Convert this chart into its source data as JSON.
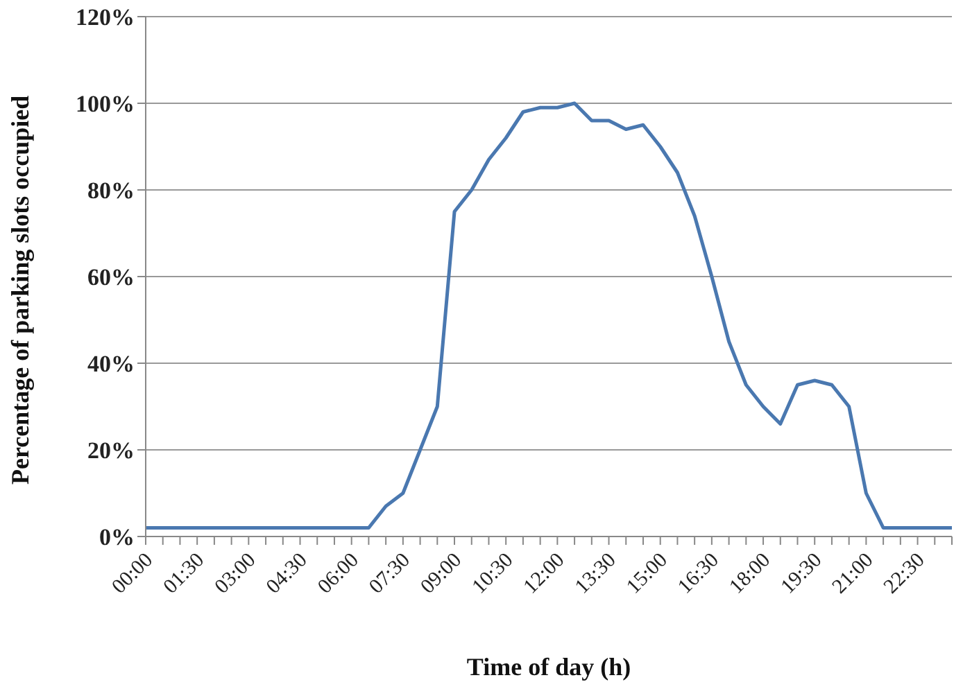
{
  "chart_data": {
    "type": "line",
    "xlabel": "Time of day (h)",
    "ylabel": "Percentage of parking slots occupied",
    "categories": [
      "00:00",
      null,
      null,
      "01:30",
      null,
      null,
      "03:00",
      null,
      null,
      "04:30",
      null,
      null,
      "06:00",
      null,
      null,
      "07:30",
      null,
      null,
      "09:00",
      null,
      null,
      "10:30",
      null,
      null,
      "12:00",
      null,
      null,
      "13:30",
      null,
      null,
      "15:00",
      null,
      null,
      "16:30",
      null,
      null,
      "18:00",
      null,
      null,
      "19:30",
      null,
      null,
      "21:00",
      null,
      null,
      "22:30",
      null,
      null
    ],
    "series": [
      {
        "color": "#4a78b0",
        "values": [
          2,
          2,
          2,
          2,
          2,
          2,
          2,
          2,
          2,
          2,
          2,
          2,
          2,
          2,
          7,
          10,
          20,
          30,
          75,
          80,
          87,
          92,
          98,
          99,
          99,
          100,
          96,
          96,
          94,
          95,
          90,
          84,
          74,
          60,
          45,
          35,
          30,
          26,
          35,
          36,
          35,
          30,
          10,
          2,
          2,
          2,
          2,
          2
        ]
      }
    ],
    "ylim": [
      0,
      120
    ],
    "yticks": [
      {
        "value": 0,
        "label": "0%"
      },
      {
        "value": 20,
        "label": "20%"
      },
      {
        "value": 40,
        "label": "40%"
      },
      {
        "value": 60,
        "label": "60%"
      },
      {
        "value": 80,
        "label": "80%"
      },
      {
        "value": 100,
        "label": "100%"
      },
      {
        "value": 120,
        "label": "120%"
      }
    ],
    "grid": "y",
    "marker": "none",
    "line_style": "solid",
    "legend": false
  }
}
